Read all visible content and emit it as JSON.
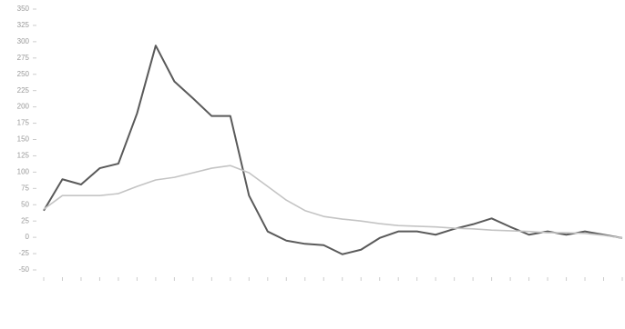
{
  "chart_data": {
    "type": "line",
    "categories": [
      null,
      null,
      null,
      null,
      null,
      null,
      null,
      null,
      null,
      null,
      null,
      null,
      null,
      null,
      null,
      null,
      null,
      null,
      null,
      null,
      null,
      null,
      null,
      null,
      null,
      null,
      null,
      null,
      null,
      null,
      null,
      null
    ],
    "series": [
      {
        "color": "#5a5a5a",
        "values": [
          41,
          89,
          81,
          106,
          113,
          190,
          294,
          239,
          213,
          186,
          186,
          64,
          9,
          -5,
          -10,
          -12,
          -26,
          -19,
          -1,
          9,
          9,
          4,
          13,
          20,
          29,
          16,
          4,
          9,
          4,
          9,
          4,
          -1
        ]
      },
      {
        "color": "#c4c4c4",
        "values": [
          43,
          64,
          64,
          64,
          67,
          78,
          88,
          92,
          99,
          106,
          110,
          99,
          78,
          57,
          41,
          32,
          28,
          25,
          21,
          18,
          17,
          16,
          14,
          13,
          11,
          10,
          9,
          7,
          7,
          6,
          3,
          -1
        ]
      }
    ],
    "ylim": [
      -50,
      350
    ],
    "yticks": [
      -50,
      -25,
      0,
      25,
      50,
      75,
      100,
      125,
      150,
      175,
      200,
      225,
      250,
      275,
      300,
      325,
      350
    ],
    "grid": false
  }
}
